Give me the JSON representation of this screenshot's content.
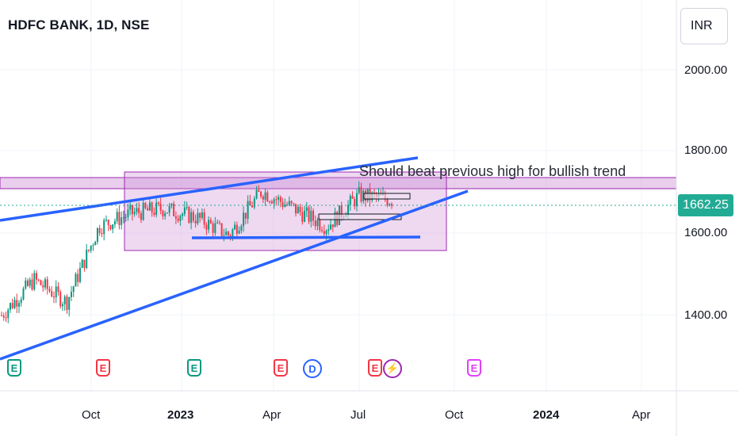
{
  "title": "HDFC BANK, 1D, NSE",
  "currency": "INR",
  "current_price": "1662.25",
  "annotation": "Should beat previous high for bullish trend",
  "price_axis": [
    "2000.00",
    "1800.00",
    "1600.00",
    "1400.00"
  ],
  "time_axis": [
    {
      "label": "Oct",
      "bold": false
    },
    {
      "label": "2023",
      "bold": true
    },
    {
      "label": "Apr",
      "bold": false
    },
    {
      "label": "Jul",
      "bold": false
    },
    {
      "label": "Oct",
      "bold": false
    },
    {
      "label": "2024",
      "bold": true
    },
    {
      "label": "Apr",
      "bold": false
    }
  ],
  "events": [
    {
      "type": "E",
      "color": "#089981"
    },
    {
      "type": "E",
      "color": "#f23645"
    },
    {
      "type": "E",
      "color": "#089981"
    },
    {
      "type": "E",
      "color": "#f23645"
    },
    {
      "type": "D",
      "color": "#2962ff"
    },
    {
      "type": "E",
      "color": "#f23645"
    },
    {
      "type": "⚡",
      "color": "#9c27b0"
    },
    {
      "type": "E",
      "color": "#e040fb"
    }
  ],
  "colors": {
    "up": "#089981",
    "down": "#f23645",
    "trendline": "#2962ff",
    "zone": "#ce93d8",
    "zone_border": "#9c27b0",
    "price_badge": "#22ab94"
  },
  "chart_data": {
    "type": "candlestick",
    "symbol": "HDFC BANK",
    "interval": "1D",
    "exchange": "NSE",
    "ylim": [
      1230,
      2110
    ],
    "current_price": 1662.25,
    "approx_closes": [
      {
        "date": "2022-08",
        "close": 1400
      },
      {
        "date": "2022-09",
        "close": 1480
      },
      {
        "date": "2022-10",
        "close": 1430
      },
      {
        "date": "2022-11",
        "close": 1600
      },
      {
        "date": "2022-12",
        "close": 1630
      },
      {
        "date": "2023-01",
        "close": 1640
      },
      {
        "date": "2023-02",
        "close": 1620
      },
      {
        "date": "2023-03",
        "close": 1580
      },
      {
        "date": "2023-04",
        "close": 1680
      },
      {
        "date": "2023-05",
        "close": 1640
      },
      {
        "date": "2023-06",
        "close": 1600
      },
      {
        "date": "2023-07",
        "close": 1670
      },
      {
        "date": "2023-08",
        "close": 1660
      }
    ]
  }
}
